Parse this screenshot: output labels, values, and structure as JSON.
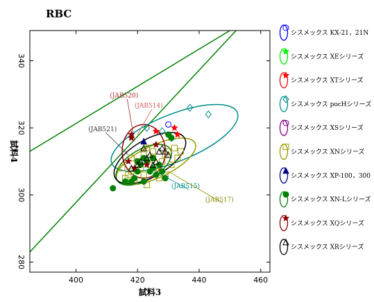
{
  "chart_data": {
    "type": "scatter",
    "title": "RBC",
    "xlabel": "試料3",
    "ylabel": "試料4",
    "xlim": [
      385,
      463
    ],
    "ylim": [
      277,
      349
    ],
    "xticks": [
      400,
      420,
      440,
      460
    ],
    "yticks": [
      280,
      300,
      320,
      340
    ],
    "grid": false,
    "legend_position": "outside-right",
    "reference_lines": [
      {
        "color": "#008000",
        "points": [
          [
            385,
            313
          ],
          [
            450,
            349
          ]
        ]
      },
      {
        "color": "#008000",
        "points": [
          [
            385,
            283
          ],
          [
            452,
            349
          ]
        ]
      }
    ],
    "series": [
      {
        "name": "シスメックス KX-21，21N",
        "marker": "circle-open",
        "color": "#0000ff",
        "points": [
          [
            430,
            321
          ]
        ]
      },
      {
        "name": "シスメックス XEシリーズ",
        "marker": "star",
        "color": "#00ee00",
        "points": []
      },
      {
        "name": "シスメックス XTシリーズ",
        "marker": "star",
        "color": "#ff0000",
        "points": [
          [
            426,
            319
          ],
          [
            433,
            318
          ],
          [
            432,
            320
          ]
        ]
      },
      {
        "name": "シスメックス pocHシリーズ",
        "marker": "diamond-open",
        "color": "#008b8b",
        "points": [
          [
            423,
            320
          ],
          [
            437,
            326
          ],
          [
            443,
            324
          ],
          [
            428,
            319
          ],
          [
            431,
            317
          ]
        ],
        "ellipse": {
          "cx": 432,
          "cy": 317,
          "rx": 22,
          "ry": 7,
          "angle": 22
        }
      },
      {
        "name": "シスメックス XSシリーズ",
        "marker": "circle-open",
        "color": "#800080",
        "points": []
      },
      {
        "name": "シスメックス XNシリーズ",
        "marker": "square-open",
        "color": "#9a9a00",
        "points": [
          [
            416,
            305
          ],
          [
            418,
            307
          ],
          [
            419,
            304
          ],
          [
            421,
            308
          ],
          [
            422,
            306
          ],
          [
            423,
            303
          ],
          [
            424,
            309
          ],
          [
            425,
            311
          ],
          [
            426,
            308
          ],
          [
            427,
            305
          ],
          [
            428,
            310
          ],
          [
            429,
            312
          ],
          [
            430,
            313
          ],
          [
            431,
            309
          ],
          [
            432,
            314
          ],
          [
            433,
            311
          ],
          [
            434,
            313
          ],
          [
            420,
            310
          ],
          [
            418,
            311
          ],
          [
            417,
            306
          ],
          [
            422,
            312
          ],
          [
            425,
            313
          ],
          [
            427,
            307
          ],
          [
            429,
            306
          ],
          [
            415,
            308
          ],
          [
            423,
            314
          ]
        ],
        "ellipse": {
          "cx": 426,
          "cy": 310,
          "rx": 14,
          "ry": 4.8,
          "angle": 25
        }
      },
      {
        "name": "シスメックス XP-100，300",
        "marker": "triangle-filled",
        "color": "#000080",
        "points": [
          [
            422,
            316
          ]
        ]
      },
      {
        "name": "シスメックス XN-Lシリーズ",
        "marker": "circle-filled",
        "color": "#008000",
        "points": [
          [
            412,
            302
          ],
          [
            420,
            307
          ],
          [
            421,
            309
          ],
          [
            422,
            304
          ],
          [
            423,
            310
          ],
          [
            424,
            307
          ],
          [
            425,
            308
          ],
          [
            426,
            306
          ],
          [
            427,
            309
          ],
          [
            428,
            307
          ],
          [
            429,
            305
          ],
          [
            430,
            318
          ],
          [
            431,
            317
          ],
          [
            418,
            304
          ],
          [
            419,
            305
          ],
          [
            416,
            304
          ],
          [
            425,
            311
          ],
          [
            422,
            311
          ],
          [
            420,
            310
          ]
        ],
        "ellipse": {
          "cx": 422,
          "cy": 309,
          "rx": 10,
          "ry": 4.6,
          "angle": 30
        }
      },
      {
        "name": "シスメックス XQシリーズ",
        "marker": "star",
        "color": "#8b0000",
        "points": [
          [
            418,
            318
          ],
          [
            418,
            317
          ],
          [
            426,
            315
          ],
          [
            417,
            310
          ],
          [
            419,
            308
          ],
          [
            423,
            309
          ]
        ],
        "ellipse": {
          "cx": 422,
          "cy": 313,
          "rx": 7,
          "ry": 8,
          "angle": 0
        }
      },
      {
        "name": "シスメックス XRシリーズ",
        "marker": "triangle-open",
        "color": "#000000",
        "points": [
          [
            418,
            308
          ],
          [
            420,
            309
          ],
          [
            421,
            310
          ],
          [
            423,
            311
          ],
          [
            424,
            312
          ],
          [
            426,
            310
          ],
          [
            427,
            313
          ],
          [
            428,
            314
          ],
          [
            429,
            313
          ],
          [
            430,
            312
          ],
          [
            422,
            314
          ],
          [
            425,
            309
          ]
        ],
        "ellipse": {
          "cx": 424,
          "cy": 311,
          "rx": 13,
          "ry": 5.5,
          "angle": 30
        }
      }
    ],
    "annotations": [
      {
        "text": "(JAB520)",
        "color": "#a52a2a",
        "x": 411,
        "y": 329,
        "to": [
          419,
          316
        ]
      },
      {
        "text": "(JAB514)",
        "color": "#cd5c5c",
        "x": 419,
        "y": 326,
        "to": [
          420,
          318
        ]
      },
      {
        "text": "(JAB521)",
        "color": "#333333",
        "x": 404,
        "y": 319,
        "to": [
          417,
          312
        ]
      },
      {
        "text": "(JAB515)",
        "color": "#008b8b",
        "x": 431,
        "y": 302,
        "to": [
          426,
          307
        ]
      },
      {
        "text": "(JAB517)",
        "color": "#8b8b00",
        "x": 442,
        "y": 298,
        "to": [
          430,
          307
        ]
      }
    ]
  }
}
